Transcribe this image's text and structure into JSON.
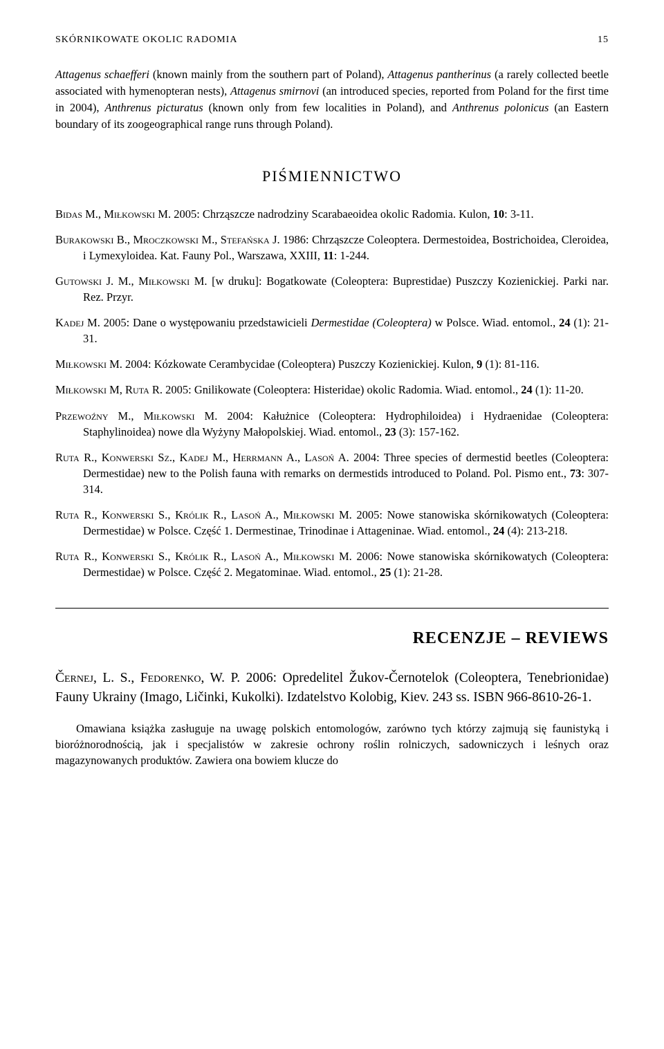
{
  "header": {
    "running_title": "SKÓRNIKOWATE OKOLIC RADOMIA",
    "page_number": "15"
  },
  "abstract": {
    "text_parts": [
      {
        "t": "Attagenus schaefferi",
        "i": true
      },
      {
        "t": " (known mainly from the southern part of Poland), ",
        "i": false
      },
      {
        "t": "Attagenus pantherinus",
        "i": true
      },
      {
        "t": " (a rarely collected beetle associated with hymenopteran nests), ",
        "i": false
      },
      {
        "t": "Attagenus smirnovi",
        "i": true
      },
      {
        "t": " (an introduced species, reported from Poland for the first time in 2004), ",
        "i": false
      },
      {
        "t": "Anthrenus picturatus",
        "i": true
      },
      {
        "t": " (known only from few localities in Poland), and ",
        "i": false
      },
      {
        "t": "Anthrenus polonicus",
        "i": true
      },
      {
        "t": " (an Eastern boundary of its zoogeographical range runs through Poland).",
        "i": false
      }
    ]
  },
  "section_title": "PIŚMIENNICTWO",
  "references": [
    {
      "parts": [
        {
          "t": "Bidas M., Miłkowski M.",
          "sc": true
        },
        {
          "t": " 2005: Chrząszcze nadrodziny Scarabaeoidea okolic Radomia. Kulon, "
        },
        {
          "t": "10",
          "b": true
        },
        {
          "t": ": 3-11."
        }
      ]
    },
    {
      "parts": [
        {
          "t": "Burakowski B., Mroczkowski M., Stefańska J.",
          "sc": true
        },
        {
          "t": " 1986: Chrząszcze Coleoptera. Dermestoidea, Bostrichoidea, Cleroidea, i Lymexyloidea. Kat. Fauny Pol., Warszawa, XXIII, "
        },
        {
          "t": "11",
          "b": true
        },
        {
          "t": ": 1-244."
        }
      ]
    },
    {
      "parts": [
        {
          "t": "Gutowski J. M., Miłkowski M.",
          "sc": true
        },
        {
          "t": " [w druku]: Bogatkowate (Coleoptera: Buprestidae) Puszczy Kozienickiej. Parki nar. Rez. Przyr."
        }
      ]
    },
    {
      "parts": [
        {
          "t": "Kadej M.",
          "sc": true
        },
        {
          "t": " 2005: Dane o występowaniu przedstawicieli "
        },
        {
          "t": "Dermestidae (Coleoptera)",
          "i": true
        },
        {
          "t": " w Polsce. Wiad. entomol., "
        },
        {
          "t": "24",
          "b": true
        },
        {
          "t": " (1): 21-31."
        }
      ]
    },
    {
      "parts": [
        {
          "t": "Miłkowski M.",
          "sc": true
        },
        {
          "t": " 2004: Kózkowate Cerambycidae (Coleoptera) Puszczy Kozienickiej. Kulon, "
        },
        {
          "t": "9",
          "b": true
        },
        {
          "t": " (1): 81-116."
        }
      ]
    },
    {
      "parts": [
        {
          "t": "Miłkowski M, Ruta R.",
          "sc": true
        },
        {
          "t": " 2005: Gnilikowate (Coleoptera: Histeridae) okolic Radomia. Wiad. entomol., "
        },
        {
          "t": "24",
          "b": true
        },
        {
          "t": " (1): 11-20."
        }
      ]
    },
    {
      "parts": [
        {
          "t": "Przewoźny M., Miłkowski M.",
          "sc": true
        },
        {
          "t": " 2004: Kałużnice (Coleoptera: Hydrophiloidea) i Hydraenidae (Coleoptera: Staphylinoidea) nowe dla Wyżyny Małopolskiej. Wiad. entomol., "
        },
        {
          "t": "23",
          "b": true
        },
        {
          "t": " (3): 157-162."
        }
      ]
    },
    {
      "parts": [
        {
          "t": "Ruta R., Konwerski Sz., Kadej M., Herrmann A., Lasoń A.",
          "sc": true
        },
        {
          "t": " 2004: Three species of dermestid beetles (Coleoptera: Dermestidae) new to the Polish fauna with remarks on dermestids introduced to Poland. Pol. Pismo ent., "
        },
        {
          "t": "73",
          "b": true
        },
        {
          "t": ": 307-314."
        }
      ]
    },
    {
      "parts": [
        {
          "t": "Ruta R., Konwerski S., Królik R., Lasoń A., Miłkowski M.",
          "sc": true
        },
        {
          "t": " 2005: Nowe stanowiska skórnikowatych (Coleoptera: Dermestidae) w Polsce. Część 1. Dermestinae, Trinodinae i Attageninae. Wiad. entomol., "
        },
        {
          "t": "24",
          "b": true
        },
        {
          "t": " (4): 213-218."
        }
      ]
    },
    {
      "parts": [
        {
          "t": "Ruta R., Konwerski S., Królik R., Lasoń A., Miłkowski M.",
          "sc": true
        },
        {
          "t": " 2006: Nowe stanowiska skórnikowatych (Coleoptera: Dermestidae) w Polsce. Część 2. Megatominae. Wiad. entomol., "
        },
        {
          "t": "25",
          "b": true
        },
        {
          "t": " (1): 21-28."
        }
      ]
    }
  ],
  "reviews_title": "RECENZJE – REVIEWS",
  "review_entry": {
    "parts": [
      {
        "t": "Černej, L. S., Fedorenko, W. P.",
        "sc": true
      },
      {
        "t": " 2006: Opredelitel Žukov-Černotelok (Coleoptera, Tenebrionidae) Fauny Ukrainy (Imago, Ličinki, Kukolki). Izdatelstvo Kolobig, Kiev. 243 ss. ISBN 966-8610-26-1."
      }
    ]
  },
  "review_body": "Omawiana książka zasługuje na uwagę polskich entomologów, zarówno tych którzy zajmują się faunistyką i bioróżnorodnością, jak i specjalistów w zakresie ochrony roślin rolniczych, sadowniczych i leśnych oraz magazynowanych produktów. Zawiera ona bowiem klucze do"
}
